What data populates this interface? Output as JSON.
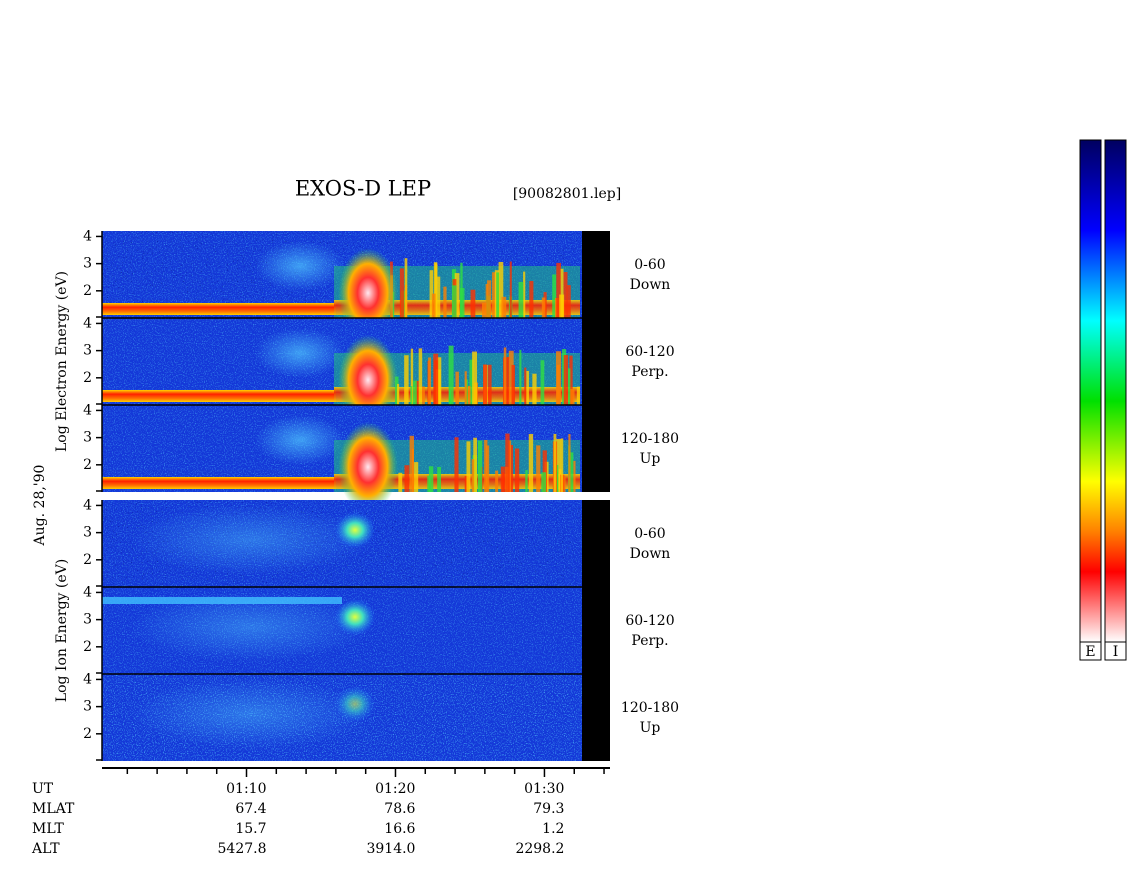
{
  "title": "EXOS-D LEP",
  "file": "[90082801.lep]",
  "date": "Aug. 28,'90",
  "chart_data": {
    "type": "spectrogram",
    "xlim": [
      60.3,
      94.4
    ],
    "xticks": [
      {
        "value": 70,
        "label": "01:10"
      },
      {
        "value": 80,
        "label": "01:20"
      },
      {
        "value": 90,
        "label": "01:30"
      }
    ],
    "xminorticks": [
      62,
      64,
      66,
      68,
      72,
      74,
      76,
      78,
      82,
      84,
      86,
      88,
      92,
      94
    ],
    "ylim": [
      1,
      4.2
    ],
    "yticks": [
      2,
      3,
      4
    ],
    "groups": [
      {
        "label": "Log  Electron  Energy (eV)",
        "species": "electron",
        "panels": [
          {
            "pitch": "0-60",
            "direction": "Down"
          },
          {
            "pitch": "60-120",
            "direction": "Perp."
          },
          {
            "pitch": "120-180",
            "direction": "Up"
          }
        ]
      },
      {
        "label": "Log  Ion  Energy (eV)",
        "species": "ion",
        "panels": [
          {
            "pitch": "0-60",
            "direction": "Down"
          },
          {
            "pitch": "60-120",
            "direction": "Perp."
          },
          {
            "pitch": "120-180",
            "direction": "Up"
          }
        ]
      }
    ],
    "colorbars": [
      "E",
      "I"
    ]
  },
  "orbit": {
    "ut_label": "UT",
    "rows": [
      {
        "label": "MLAT",
        "values": [
          "67.4",
          "78.6",
          "79.3"
        ]
      },
      {
        "label": "MLT",
        "values": [
          "15.7",
          "16.6",
          "1.2"
        ]
      },
      {
        "label": "ALT",
        "values": [
          "5427.8",
          "3914.0",
          "2298.2"
        ]
      }
    ]
  }
}
